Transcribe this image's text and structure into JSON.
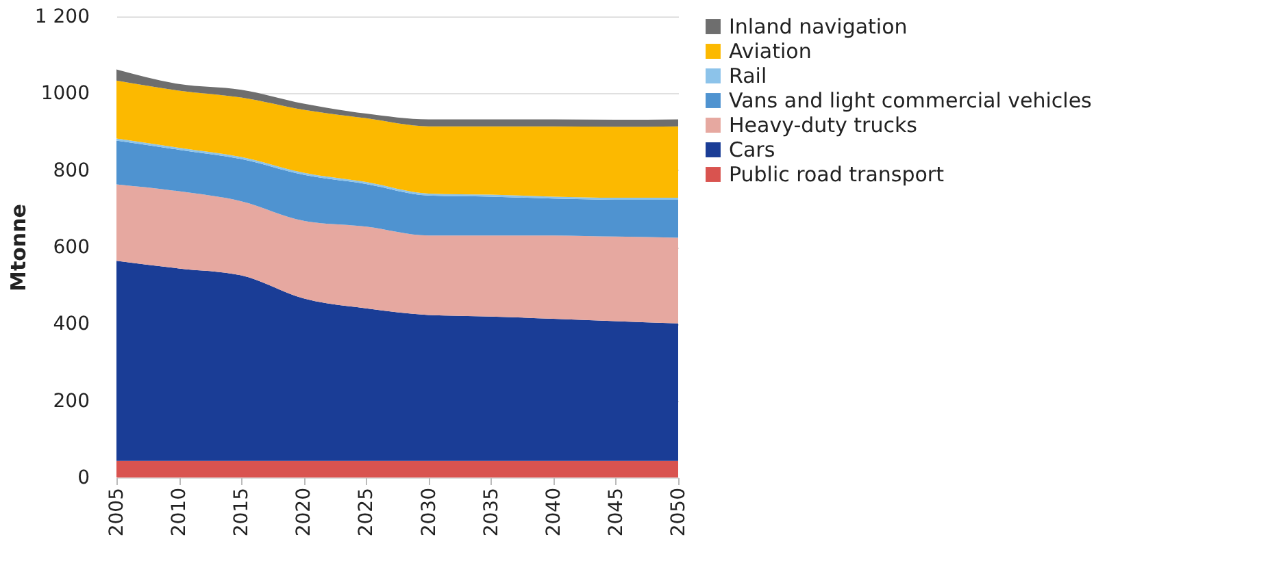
{
  "chart_data": {
    "type": "area",
    "stacked": true,
    "ylabel": "Mtonne",
    "x": [
      2005,
      2010,
      2015,
      2020,
      2025,
      2030,
      2035,
      2040,
      2045,
      2050
    ],
    "series": [
      {
        "name": "Public road transport",
        "color": "#d9534f",
        "values": [
          43,
          43,
          43,
          43,
          43,
          43,
          43,
          43,
          43,
          43
        ]
      },
      {
        "name": "Cars",
        "color": "#1a3d96",
        "values": [
          521,
          501,
          483,
          423,
          397,
          380,
          376,
          370,
          364,
          358
        ]
      },
      {
        "name": "Heavy-duty trucks",
        "color": "#e6a8a0",
        "values": [
          199,
          201,
          193,
          202,
          213,
          207,
          211,
          217,
          220,
          223
        ]
      },
      {
        "name": "Vans and light commercial vehicles",
        "color": "#4f93d0",
        "values": [
          114,
          108,
          110,
          120,
          111,
          104,
          101,
          96,
          96,
          99
        ]
      },
      {
        "name": "Rail",
        "color": "#8cc3ea",
        "values": [
          5,
          5,
          5,
          5,
          5,
          5,
          5,
          5,
          5,
          5
        ]
      },
      {
        "name": "Aviation",
        "color": "#fcb900",
        "values": [
          151,
          149,
          155,
          164,
          166,
          175,
          178,
          183,
          185,
          186
        ]
      },
      {
        "name": "Inland navigation",
        "color": "#6e6e6e",
        "values": [
          29,
          17,
          20,
          16,
          12,
          18,
          18,
          18,
          18,
          18
        ]
      }
    ],
    "xlim": [
      2005,
      2050
    ],
    "xticks": [
      2005,
      2010,
      2015,
      2020,
      2025,
      2030,
      2035,
      2040,
      2045,
      2050
    ],
    "ylim": [
      0,
      1200
    ],
    "yticks": [
      0,
      200,
      400,
      600,
      800,
      1000,
      {
        "value": 1200,
        "label": "1 200"
      }
    ],
    "grid": "y",
    "legend": "right"
  }
}
